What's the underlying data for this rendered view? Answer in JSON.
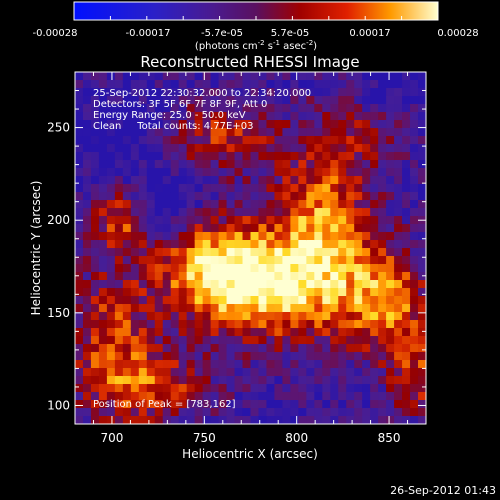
{
  "colorbar": {
    "ticks": [
      "-0.00028",
      "-0.00017",
      "-5.7e-05",
      "5.7e-05",
      "0.00017",
      "0.00028"
    ],
    "unit_main": "(photons cm",
    "unit_sup1": "-2",
    "unit_mid": " s",
    "unit_sup2": "-1",
    "unit_mid2": " asec",
    "unit_sup3": "-2",
    "unit_end": ")"
  },
  "annotations": {
    "time_range": "25-Sep-2012 22:30:32.000 to 22:34:20.000",
    "detectors": "Detectors: 3F 5F 6F 7F 8F 9F, Att 0",
    "energy": "Energy Range: 25.0 - 50.0 keV",
    "clean": "Clean     Total counts: 4.77E+03",
    "peak": "Position of Peak = [783,162]"
  },
  "footer_timestamp": "26-Sep-2012 01:43",
  "chart_data": {
    "type": "heatmap",
    "title": "Reconstructed RHESSI Image",
    "xlabel": "Heliocentric X (arcsec)",
    "ylabel": "Heliocentric Y (arcsec)",
    "xlim": [
      680,
      870
    ],
    "ylim": [
      90,
      280
    ],
    "x_ticks": [
      700,
      750,
      800,
      850
    ],
    "y_ticks": [
      100,
      150,
      200,
      250
    ],
    "colormap": "hot-dark-blue",
    "grid": false,
    "peak": [
      783,
      162
    ]
  }
}
